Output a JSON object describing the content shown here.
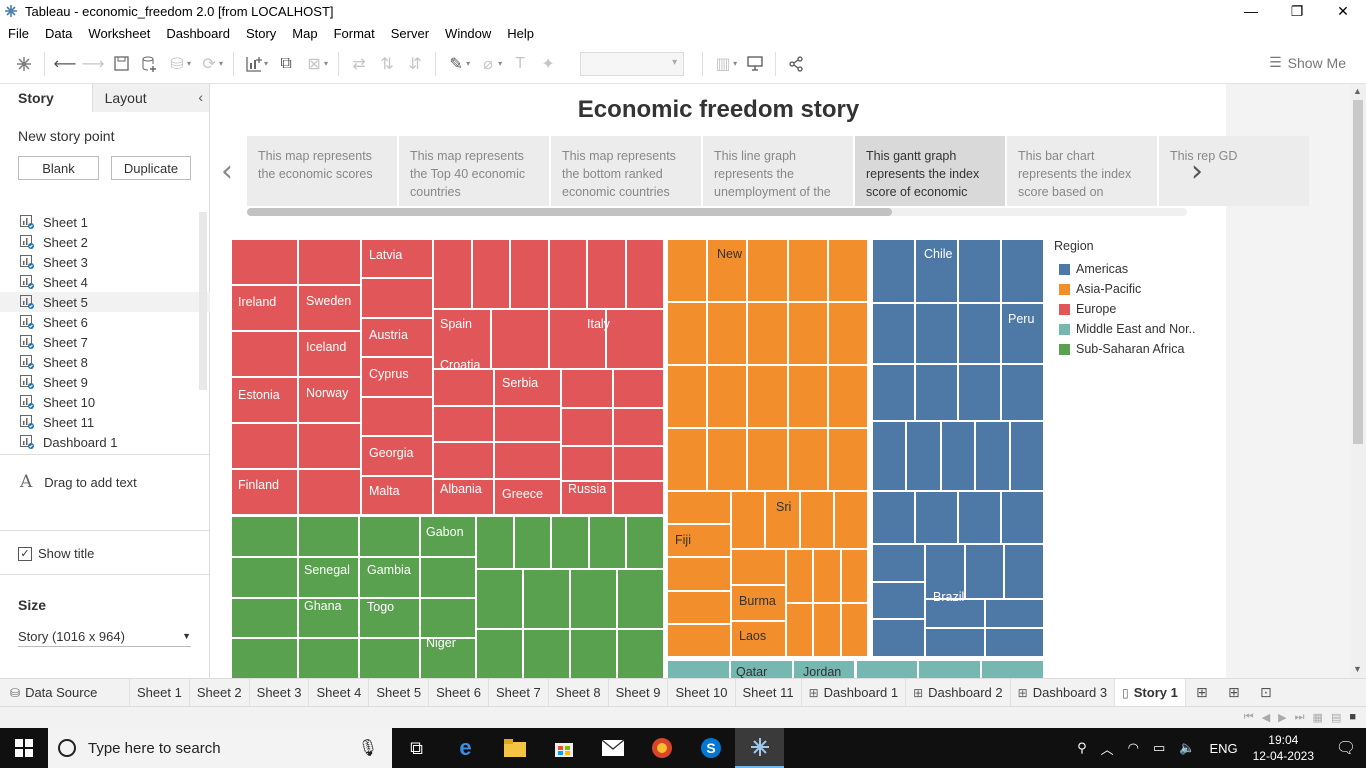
{
  "window": {
    "title": "Tableau - economic_freedom 2.0 [from LOCALHOST]",
    "controls": {
      "minimize": "—",
      "restore": "❐",
      "close": "✕"
    }
  },
  "menu": [
    "File",
    "Data",
    "Worksheet",
    "Dashboard",
    "Story",
    "Map",
    "Format",
    "Server",
    "Window",
    "Help"
  ],
  "toolbar": {
    "show_me": "Show Me"
  },
  "left_pane": {
    "tabs": {
      "story": "Story",
      "layout": "Layout"
    },
    "new_story_point": "New story point",
    "blank_button": "Blank",
    "duplicate_button": "Duplicate",
    "sheets": [
      "Sheet 1",
      "Sheet 2",
      "Sheet 3",
      "Sheet 4",
      "Sheet 5",
      "Sheet 6",
      "Sheet 7",
      "Sheet 8",
      "Sheet 9",
      "Sheet 10",
      "Sheet 11",
      "Dashboard 1"
    ],
    "drag_text": "Drag to add text",
    "show_title": "Show title",
    "size_label": "Size",
    "size_value": "Story (1016 x 964)"
  },
  "story": {
    "title": "Economic freedom story",
    "captions": [
      "This map represents the economic scores",
      "This map represents the Top 40 economic countries",
      "This map represents the bottom ranked economic countries",
      "This line graph represents the unemployment of the",
      "This gantt graph represents the index score of economic",
      "This bar chart represents the index score based on",
      "This rep GD"
    ],
    "selected_caption": 4
  },
  "treemap": {
    "labels": {
      "eu": [
        "Latvia",
        "Ireland",
        "Sweden",
        "Austria",
        "Spain",
        "Italy",
        "Iceland",
        "Cyprus",
        "Croatia",
        "Serbia",
        "Estonia",
        "Norway",
        "Georgia",
        "Finland",
        "Malta",
        "Albania",
        "Greece",
        "Russia"
      ],
      "ap": [
        "New",
        "Sri",
        "Fiji",
        "Burma",
        "Laos"
      ],
      "am": [
        "Chile",
        "Peru",
        "Brazil"
      ],
      "af": [
        "Gabon",
        "Senegal",
        "Gambia",
        "Ghana",
        "Togo",
        "Niger"
      ],
      "me": [
        "Qatar",
        "Jordan"
      ]
    }
  },
  "legend": {
    "title": "Region",
    "items": [
      {
        "label": "Americas",
        "color": "#4e79a7"
      },
      {
        "label": "Asia-Pacific",
        "color": "#f28e2b"
      },
      {
        "label": "Europe",
        "color": "#e15759"
      },
      {
        "label": "Middle East and Nor..",
        "color": "#76b7b2"
      },
      {
        "label": "Sub-Saharan Africa",
        "color": "#59a14f"
      }
    ]
  },
  "bottom_tabs": {
    "data_source": "Data Source",
    "sheets": [
      "Sheet 1",
      "Sheet 2",
      "Sheet 3",
      "Sheet 4",
      "Sheet 5",
      "Sheet 6",
      "Sheet 7",
      "Sheet 8",
      "Sheet 9",
      "Sheet 10",
      "Sheet 11"
    ],
    "dashboards": [
      "Dashboard 1",
      "Dashboard 2",
      "Dashboard 3"
    ],
    "story": "Story 1"
  },
  "taskbar": {
    "search_placeholder": "Type here to search",
    "language": "ENG",
    "time": "19:04",
    "date": "12-04-2023"
  }
}
